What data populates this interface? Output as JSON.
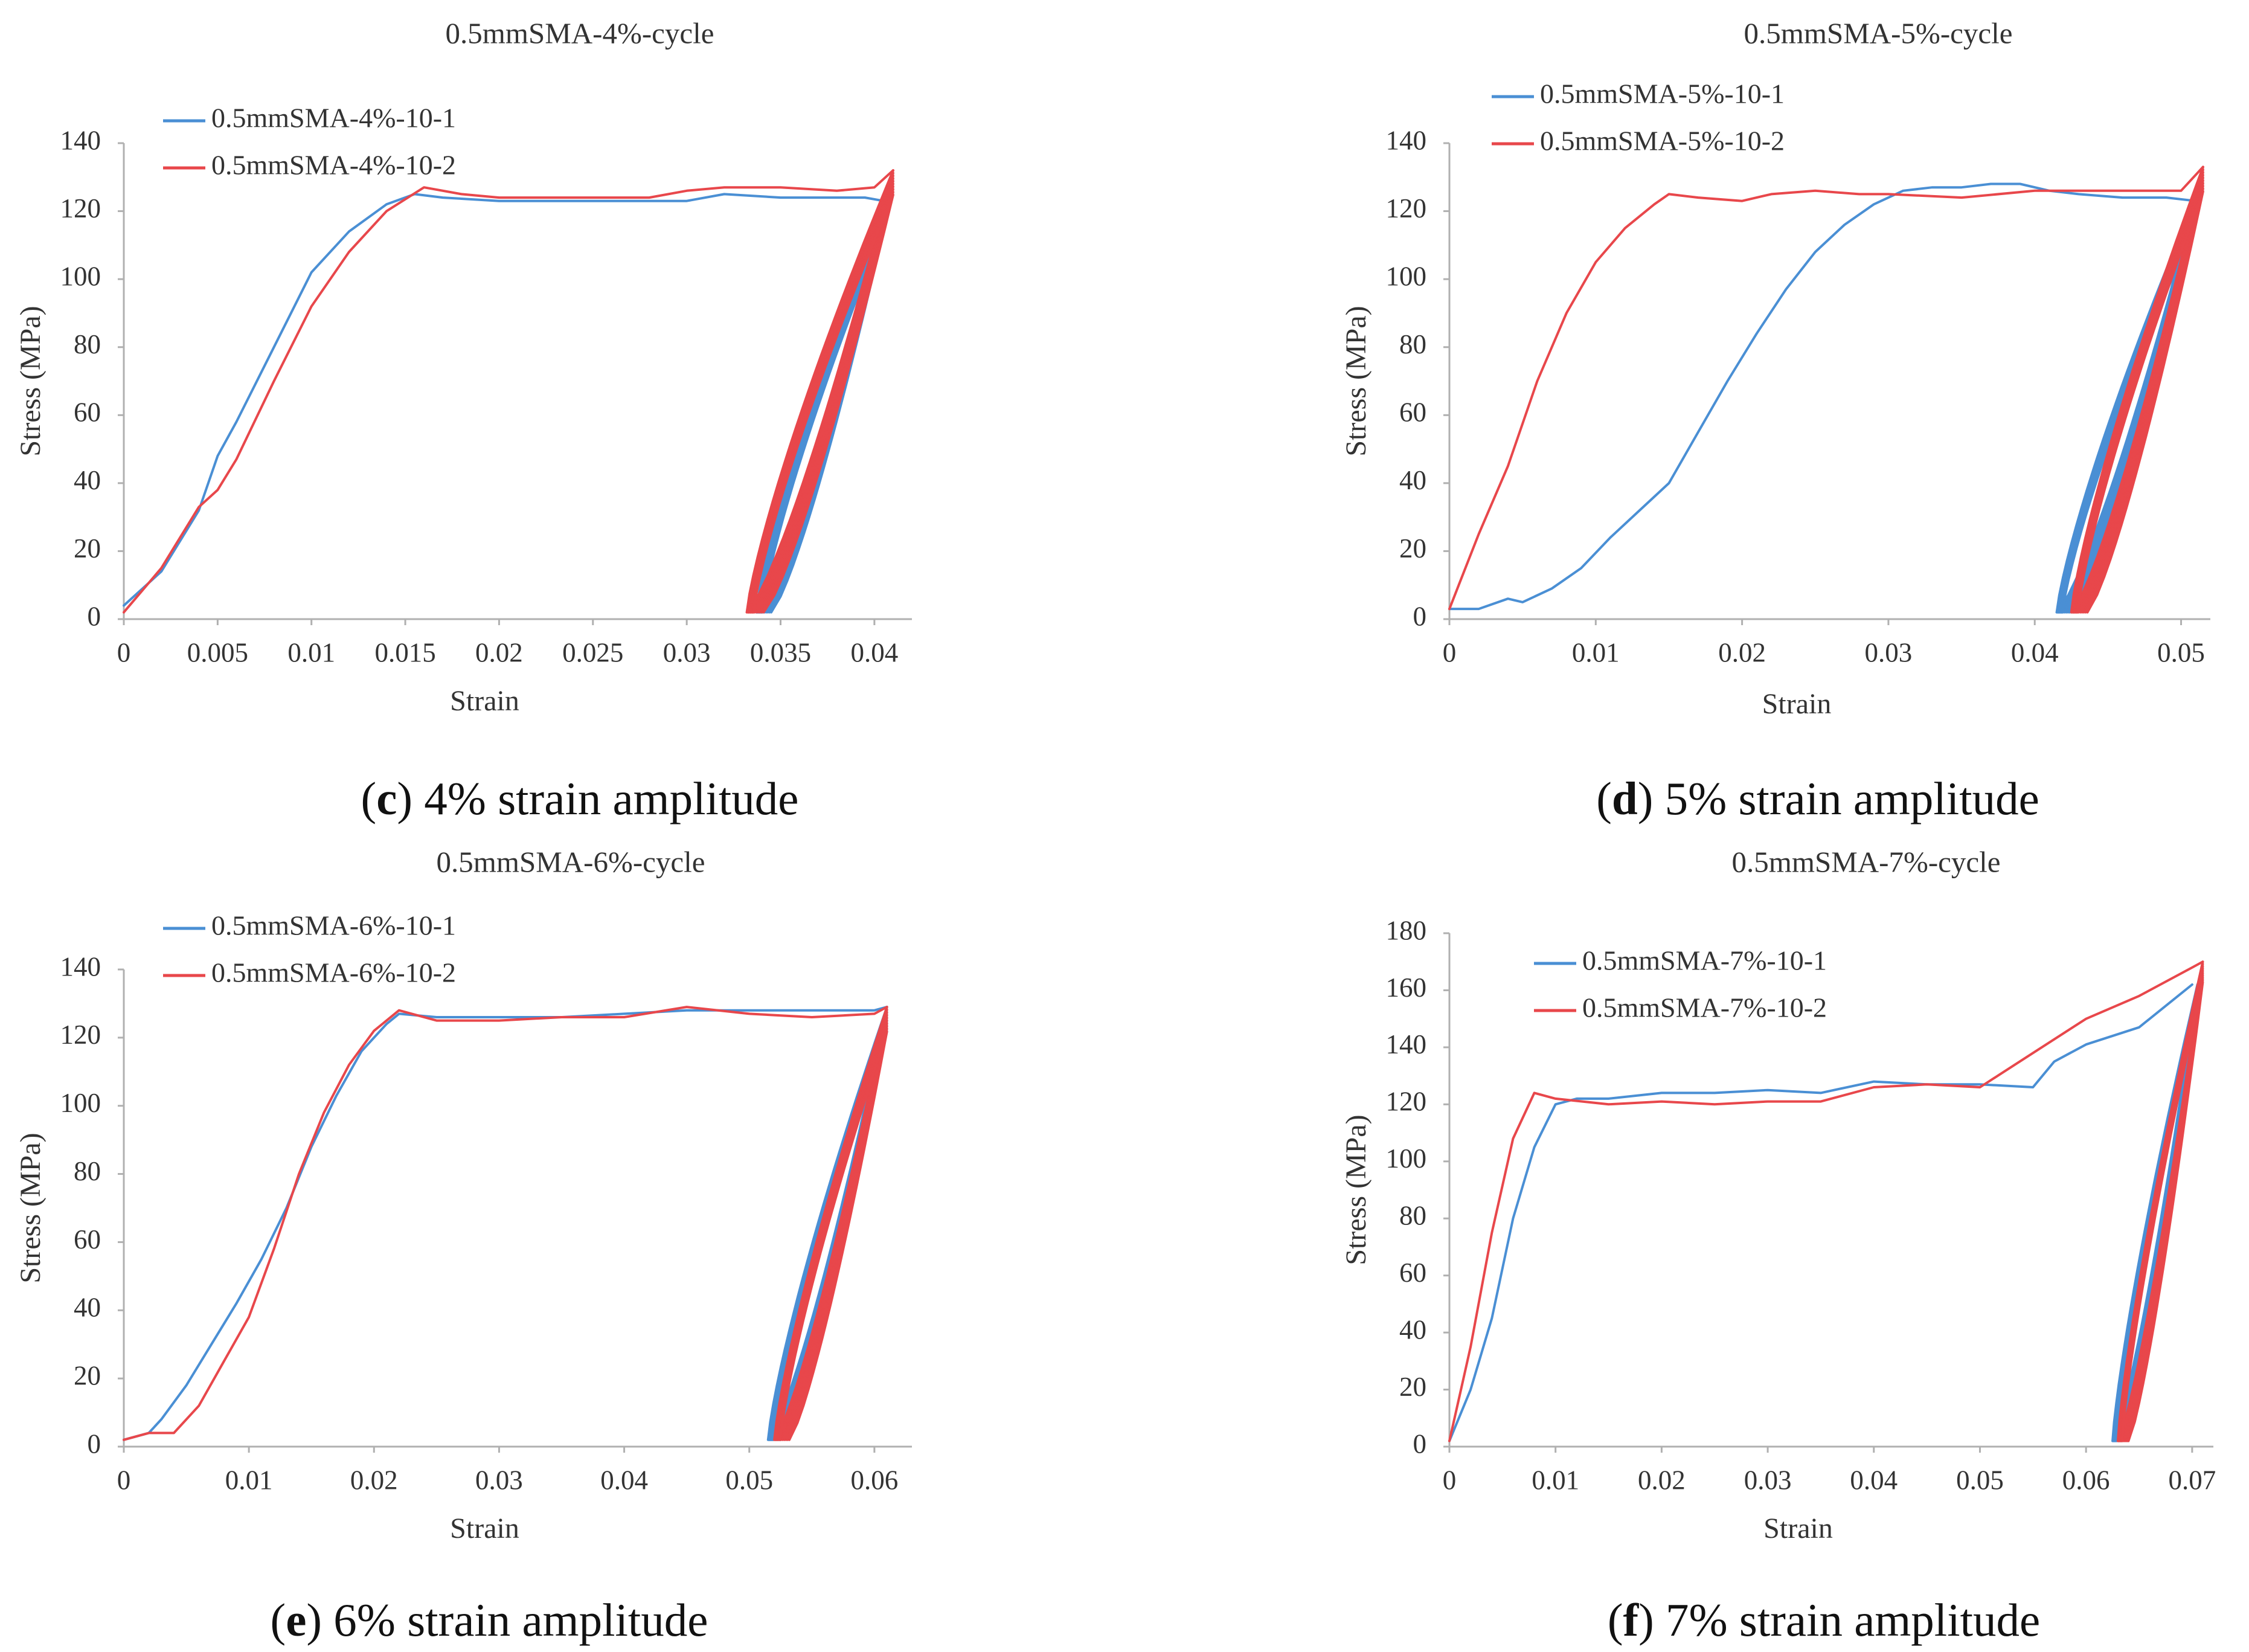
{
  "colors": {
    "series_1": "#4a8fd4",
    "series_2": "#e8474b"
  },
  "chart_data": [
    {
      "panel": "c",
      "type": "line",
      "title": "0.5mmSMA-4%-cycle",
      "xlabel": "Strain",
      "ylabel": "Stress (MPa)",
      "xlim": [
        0,
        0.042
      ],
      "ylim": [
        0,
        140
      ],
      "xticks": [
        0,
        0.005,
        0.01,
        0.015,
        0.02,
        0.025,
        0.03,
        0.035,
        0.04
      ],
      "xtick_labels": [
        "0",
        "0.005",
        "0.01",
        "0.015",
        "0.02",
        "0.025",
        "0.03",
        "0.035",
        "0.04"
      ],
      "yticks": [
        0,
        20,
        40,
        60,
        80,
        100,
        120,
        140
      ],
      "ytick_labels": [
        "0",
        "20",
        "40",
        "60",
        "80",
        "100",
        "120",
        "140"
      ],
      "legend": "top-left",
      "caption_letter": "c",
      "caption_text": " 4% strain amplitude",
      "series": [
        {
          "name": "0.5mmSMA-4%-10-1",
          "loading": [
            [
              0,
              4
            ],
            [
              0.002,
              14
            ],
            [
              0.004,
              32
            ],
            [
              0.005,
              48
            ],
            [
              0.006,
              58
            ],
            [
              0.008,
              80
            ],
            [
              0.01,
              102
            ],
            [
              0.012,
              114
            ],
            [
              0.014,
              122
            ],
            [
              0.0155,
              125
            ],
            [
              0.017,
              124
            ],
            [
              0.02,
              123
            ],
            [
              0.025,
              123
            ],
            [
              0.028,
              123
            ],
            [
              0.03,
              123
            ],
            [
              0.032,
              125
            ],
            [
              0.035,
              124
            ],
            [
              0.038,
              124
            ],
            [
              0.0395,
              124
            ],
            [
              0.0405,
              123
            ]
          ],
          "loops": {
            "strain_min": 0.0337,
            "strain_max": 0.0405,
            "stress_min": 2,
            "stress_max": 122,
            "count": 10,
            "spread": 0.0008
          }
        },
        {
          "name": "0.5mmSMA-4%-10-2",
          "loading": [
            [
              0,
              2
            ],
            [
              0.002,
              15
            ],
            [
              0.004,
              33
            ],
            [
              0.005,
              38
            ],
            [
              0.006,
              47
            ],
            [
              0.008,
              70
            ],
            [
              0.01,
              92
            ],
            [
              0.012,
              108
            ],
            [
              0.014,
              120
            ],
            [
              0.016,
              127
            ],
            [
              0.018,
              125
            ],
            [
              0.02,
              124
            ],
            [
              0.022,
              124
            ],
            [
              0.025,
              124
            ],
            [
              0.028,
              124
            ],
            [
              0.03,
              126
            ],
            [
              0.032,
              127
            ],
            [
              0.035,
              127
            ],
            [
              0.038,
              126
            ],
            [
              0.04,
              127
            ],
            [
              0.041,
              132
            ]
          ],
          "loops": {
            "strain_min": 0.0332,
            "strain_max": 0.041,
            "stress_min": 2,
            "stress_max": 132,
            "count": 10,
            "spread": 0.0009
          }
        }
      ]
    },
    {
      "panel": "d",
      "type": "line",
      "title": "0.5mmSMA-5%-cycle",
      "xlabel": "Strain",
      "ylabel": "Stress (MPa)",
      "xlim": [
        0,
        0.052
      ],
      "ylim": [
        0,
        140
      ],
      "xticks": [
        0,
        0.01,
        0.02,
        0.03,
        0.04,
        0.05
      ],
      "xtick_labels": [
        "0",
        "0.01",
        "0.02",
        "0.03",
        "0.04",
        "0.05"
      ],
      "yticks": [
        0,
        20,
        40,
        60,
        80,
        100,
        120,
        140
      ],
      "ytick_labels": [
        "0",
        "20",
        "40",
        "60",
        "80",
        "100",
        "120",
        "140"
      ],
      "legend": "top-left",
      "caption_letter": "d",
      "caption_text": " 5% strain amplitude",
      "series": [
        {
          "name": "0.5mmSMA-5%-10-1",
          "loading": [
            [
              0,
              3
            ],
            [
              0.002,
              3
            ],
            [
              0.004,
              6
            ],
            [
              0.005,
              5
            ],
            [
              0.007,
              9
            ],
            [
              0.009,
              15
            ],
            [
              0.011,
              24
            ],
            [
              0.013,
              32
            ],
            [
              0.015,
              40
            ],
            [
              0.017,
              55
            ],
            [
              0.019,
              70
            ],
            [
              0.021,
              84
            ],
            [
              0.023,
              97
            ],
            [
              0.025,
              108
            ],
            [
              0.027,
              116
            ],
            [
              0.029,
              122
            ],
            [
              0.031,
              126
            ],
            [
              0.033,
              127
            ],
            [
              0.035,
              127
            ],
            [
              0.037,
              128
            ],
            [
              0.039,
              128
            ],
            [
              0.041,
              126
            ],
            [
              0.043,
              125
            ],
            [
              0.046,
              124
            ],
            [
              0.049,
              124
            ],
            [
              0.051,
              123
            ]
          ],
          "loops": {
            "strain_min": 0.0415,
            "strain_max": 0.051,
            "stress_min": 2,
            "stress_max": 124,
            "count": 10,
            "spread": 0.001
          }
        },
        {
          "name": "0.5mmSMA-5%-10-2",
          "loading": [
            [
              0,
              3
            ],
            [
              0.002,
              25
            ],
            [
              0.004,
              45
            ],
            [
              0.006,
              70
            ],
            [
              0.008,
              90
            ],
            [
              0.01,
              105
            ],
            [
              0.012,
              115
            ],
            [
              0.014,
              122
            ],
            [
              0.015,
              125
            ],
            [
              0.017,
              124
            ],
            [
              0.02,
              123
            ],
            [
              0.022,
              125
            ],
            [
              0.025,
              126
            ],
            [
              0.028,
              125
            ],
            [
              0.03,
              125
            ],
            [
              0.035,
              124
            ],
            [
              0.04,
              126
            ],
            [
              0.045,
              126
            ],
            [
              0.05,
              126
            ],
            [
              0.0515,
              133
            ]
          ],
          "loops": {
            "strain_min": 0.0425,
            "strain_max": 0.0515,
            "stress_min": 2,
            "stress_max": 133,
            "count": 10,
            "spread": 0.0011
          }
        }
      ]
    },
    {
      "panel": "e",
      "type": "line",
      "title": "0.5mmSMA-6%-cycle",
      "xlabel": "Strain",
      "ylabel": "Stress (MPa)",
      "xlim": [
        0,
        0.063
      ],
      "ylim": [
        0,
        140
      ],
      "xticks": [
        0,
        0.01,
        0.02,
        0.03,
        0.04,
        0.05,
        0.06
      ],
      "xtick_labels": [
        "0",
        "0.01",
        "0.02",
        "0.03",
        "0.04",
        "0.05",
        "0.06"
      ],
      "yticks": [
        0,
        20,
        40,
        60,
        80,
        100,
        120,
        140
      ],
      "ytick_labels": [
        "0",
        "20",
        "40",
        "60",
        "80",
        "100",
        "120",
        "140"
      ],
      "legend": "top-left",
      "caption_letter": "e",
      "caption_text": " 6% strain amplitude",
      "series": [
        {
          "name": "0.5mmSMA-6%-10-1",
          "loading": [
            [
              0,
              2
            ],
            [
              0.002,
              4
            ],
            [
              0.003,
              8
            ],
            [
              0.005,
              18
            ],
            [
              0.007,
              30
            ],
            [
              0.009,
              42
            ],
            [
              0.011,
              55
            ],
            [
              0.013,
              70
            ],
            [
              0.015,
              88
            ],
            [
              0.017,
              103
            ],
            [
              0.019,
              116
            ],
            [
              0.021,
              124
            ],
            [
              0.022,
              127
            ],
            [
              0.025,
              126
            ],
            [
              0.03,
              126
            ],
            [
              0.035,
              126
            ],
            [
              0.04,
              127
            ],
            [
              0.045,
              128
            ],
            [
              0.05,
              128
            ],
            [
              0.055,
              128
            ],
            [
              0.06,
              128
            ],
            [
              0.061,
              129
            ]
          ],
          "loops": {
            "strain_min": 0.0515,
            "strain_max": 0.061,
            "stress_min": 2,
            "stress_max": 129,
            "count": 10,
            "spread": 0.001
          }
        },
        {
          "name": "0.5mmSMA-6%-10-2",
          "loading": [
            [
              0,
              2
            ],
            [
              0.002,
              4
            ],
            [
              0.004,
              4
            ],
            [
              0.006,
              12
            ],
            [
              0.008,
              25
            ],
            [
              0.01,
              38
            ],
            [
              0.012,
              58
            ],
            [
              0.014,
              80
            ],
            [
              0.016,
              98
            ],
            [
              0.018,
              112
            ],
            [
              0.02,
              122
            ],
            [
              0.022,
              128
            ],
            [
              0.025,
              125
            ],
            [
              0.03,
              125
            ],
            [
              0.035,
              126
            ],
            [
              0.04,
              126
            ],
            [
              0.045,
              129
            ],
            [
              0.05,
              127
            ],
            [
              0.055,
              126
            ],
            [
              0.06,
              127
            ],
            [
              0.061,
              129
            ]
          ],
          "loops": {
            "strain_min": 0.052,
            "strain_max": 0.061,
            "stress_min": 2,
            "stress_max": 129,
            "count": 10,
            "spread": 0.0012
          }
        }
      ]
    },
    {
      "panel": "f",
      "type": "line",
      "title": "0.5mmSMA-7%-cycle",
      "xlabel": "Strain",
      "ylabel": "Stress (MPa)",
      "xlim": [
        0,
        0.072
      ],
      "ylim": [
        0,
        180
      ],
      "xticks": [
        0,
        0.01,
        0.02,
        0.03,
        0.04,
        0.05,
        0.06,
        0.07
      ],
      "xtick_labels": [
        "0",
        "0.01",
        "0.02",
        "0.03",
        "0.04",
        "0.05",
        "0.06",
        "0.07"
      ],
      "yticks": [
        0,
        20,
        40,
        60,
        80,
        100,
        120,
        140,
        160,
        180
      ],
      "ytick_labels": [
        "0",
        "20",
        "40",
        "60",
        "80",
        "100",
        "120",
        "140",
        "160",
        "180"
      ],
      "legend": "top-left",
      "caption_letter": "f",
      "caption_text": " 7% strain amplitude",
      "series": [
        {
          "name": "0.5mmSMA-7%-10-1",
          "loading": [
            [
              0,
              2
            ],
            [
              0.002,
              20
            ],
            [
              0.004,
              45
            ],
            [
              0.006,
              80
            ],
            [
              0.008,
              105
            ],
            [
              0.01,
              120
            ],
            [
              0.012,
              122
            ],
            [
              0.015,
              122
            ],
            [
              0.02,
              124
            ],
            [
              0.025,
              124
            ],
            [
              0.03,
              125
            ],
            [
              0.035,
              124
            ],
            [
              0.04,
              128
            ],
            [
              0.045,
              127
            ],
            [
              0.05,
              127
            ],
            [
              0.055,
              126
            ],
            [
              0.057,
              135
            ],
            [
              0.06,
              141
            ],
            [
              0.065,
              147
            ],
            [
              0.07,
              162
            ]
          ],
          "loops": {
            "strain_min": 0.0625,
            "strain_max": 0.0705,
            "stress_min": 2,
            "stress_max": 162,
            "count": 10,
            "spread": 0.0009
          }
        },
        {
          "name": "0.5mmSMA-7%-10-2",
          "loading": [
            [
              0,
              2
            ],
            [
              0.002,
              35
            ],
            [
              0.004,
              75
            ],
            [
              0.006,
              108
            ],
            [
              0.008,
              124
            ],
            [
              0.01,
              122
            ],
            [
              0.015,
              120
            ],
            [
              0.02,
              121
            ],
            [
              0.025,
              120
            ],
            [
              0.03,
              121
            ],
            [
              0.035,
              121
            ],
            [
              0.04,
              126
            ],
            [
              0.045,
              127
            ],
            [
              0.05,
              126
            ],
            [
              0.055,
              138
            ],
            [
              0.06,
              150
            ],
            [
              0.065,
              158
            ],
            [
              0.07,
              168
            ],
            [
              0.071,
              170
            ]
          ],
          "loops": {
            "strain_min": 0.063,
            "strain_max": 0.071,
            "stress_min": 2,
            "stress_max": 170,
            "count": 10,
            "spread": 0.001
          }
        }
      ]
    }
  ]
}
